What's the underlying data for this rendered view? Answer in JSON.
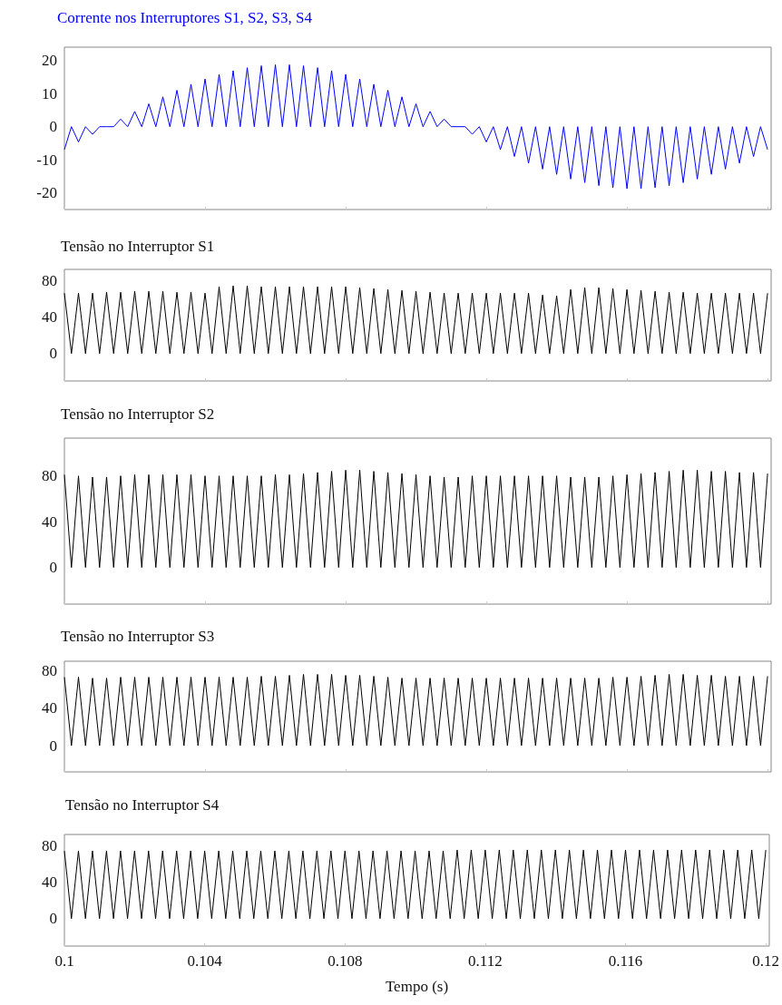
{
  "chart_data": [
    {
      "type": "line",
      "title": "Corrente nos Interruptores S1, S2, S3, S4",
      "xlim": [
        0.1,
        0.1201
      ],
      "xticks": [
        0.1,
        0.104,
        0.108,
        0.112,
        0.116,
        0.12
      ],
      "ylim": [
        -25,
        24
      ],
      "yticks": [
        -20,
        -10,
        0,
        10,
        20
      ],
      "tick_labels": "y",
      "grid": false,
      "x": [
        0.1,
        0.1002,
        0.1004,
        0.1006,
        0.1008,
        0.101,
        0.1012,
        0.1014,
        0.1016,
        0.1018,
        0.102,
        0.1022,
        0.1024,
        0.1026,
        0.1028,
        0.103,
        0.1032,
        0.1034,
        0.1036,
        0.1038,
        0.104,
        0.1042,
        0.1044,
        0.1046,
        0.1048,
        0.105,
        0.1052,
        0.1054,
        0.1056,
        0.1058,
        0.106,
        0.1062,
        0.1064,
        0.1066,
        0.1068,
        0.107,
        0.1072,
        0.1074,
        0.1076,
        0.1078,
        0.108,
        0.1082,
        0.1084,
        0.1086,
        0.1088,
        0.109,
        0.1092,
        0.1094,
        0.1096,
        0.1098,
        0.11,
        0.1102,
        0.1104,
        0.1106,
        0.1108,
        0.111,
        0.1112,
        0.1114,
        0.1116,
        0.1118,
        0.112,
        0.1122,
        0.1124,
        0.1126,
        0.1128,
        0.113,
        0.1132,
        0.1134,
        0.1136,
        0.1138,
        0.114,
        0.1142,
        0.1144,
        0.1146,
        0.1148,
        0.115,
        0.1152,
        0.1154,
        0.1156,
        0.1158,
        0.116,
        0.1162,
        0.1164,
        0.1166,
        0.1168,
        0.117,
        0.1172,
        0.1174,
        0.1176,
        0.1178,
        0.118,
        0.1182,
        0.1184,
        0.1186,
        0.1188,
        0.119,
        0.1192,
        0.1194,
        0.1196,
        0.1198,
        0.12
      ],
      "series": [
        {
          "color": "#0000ff",
          "values": [
            -6.9,
            0,
            -4.6,
            0,
            -2.3,
            0,
            0,
            0,
            2.3,
            0,
            4.6,
            0,
            6.9,
            0,
            9,
            0,
            11,
            0,
            12.8,
            0,
            14.4,
            0,
            15.8,
            0,
            16.9,
            0,
            17.8,
            0,
            18.4,
            0,
            18.7,
            0,
            18.7,
            0,
            18.4,
            0,
            17.8,
            0,
            16.9,
            0,
            15.8,
            0,
            14.4,
            0,
            12.8,
            0,
            11,
            0,
            9,
            0,
            6.9,
            0,
            4.6,
            0,
            2.3,
            0,
            0,
            0,
            -2.3,
            0,
            -4.6,
            0,
            -6.9,
            0,
            -9,
            0,
            -11,
            0,
            -12.8,
            0,
            -14.4,
            0,
            -15.8,
            0,
            -16.9,
            0,
            -17.8,
            0,
            -18.4,
            0,
            -18.7,
            0,
            -18.7,
            0,
            -18.4,
            0,
            -17.8,
            0,
            -16.9,
            0,
            -15.8,
            0,
            -14.4,
            0,
            -12.8,
            0,
            -11,
            0,
            -9,
            0,
            -6.9
          ]
        }
      ]
    },
    {
      "type": "line",
      "title": "Tensão no Interruptor S1",
      "xlim": [
        0.1,
        0.1201
      ],
      "xticks": [
        0.1,
        0.104,
        0.108,
        0.112,
        0.116,
        0.12
      ],
      "ylim": [
        -30,
        92
      ],
      "yticks": [
        0,
        40,
        80
      ],
      "tick_labels": "y",
      "grid": false,
      "x": [
        0.1,
        0.1002,
        0.1004,
        0.1006,
        0.1008,
        0.101,
        0.1012,
        0.1014,
        0.1016,
        0.1018,
        0.102,
        0.1022,
        0.1024,
        0.1026,
        0.1028,
        0.103,
        0.1032,
        0.1034,
        0.1036,
        0.1038,
        0.104,
        0.1042,
        0.1044,
        0.1046,
        0.1048,
        0.105,
        0.1052,
        0.1054,
        0.1056,
        0.1058,
        0.106,
        0.1062,
        0.1064,
        0.1066,
        0.1068,
        0.107,
        0.1072,
        0.1074,
        0.1076,
        0.1078,
        0.108,
        0.1082,
        0.1084,
        0.1086,
        0.1088,
        0.109,
        0.1092,
        0.1094,
        0.1096,
        0.1098,
        0.11,
        0.1102,
        0.1104,
        0.1106,
        0.1108,
        0.111,
        0.1112,
        0.1114,
        0.1116,
        0.1118,
        0.112,
        0.1122,
        0.1124,
        0.1126,
        0.1128,
        0.113,
        0.1132,
        0.1134,
        0.1136,
        0.1138,
        0.114,
        0.1142,
        0.1144,
        0.1146,
        0.1148,
        0.115,
        0.1152,
        0.1154,
        0.1156,
        0.1158,
        0.116,
        0.1162,
        0.1164,
        0.1166,
        0.1168,
        0.117,
        0.1172,
        0.1174,
        0.1176,
        0.1178,
        0.118,
        0.1182,
        0.1184,
        0.1186,
        0.1188,
        0.119,
        0.1192,
        0.1194,
        0.1196,
        0.1198,
        0.12
      ],
      "series": [
        {
          "color": "#000000",
          "values": [
            66,
            0,
            66,
            0,
            66,
            0,
            67,
            0,
            67,
            0,
            68,
            0,
            68,
            0,
            68,
            0,
            67,
            0,
            67,
            0,
            66,
            0,
            73,
            0,
            74,
            0,
            74,
            0,
            73,
            0,
            73,
            0,
            73,
            0,
            73,
            0,
            73,
            0,
            73,
            0,
            73,
            0,
            72,
            0,
            71,
            0,
            70,
            0,
            69,
            0,
            68,
            0,
            67,
            0,
            66,
            0,
            66,
            0,
            66,
            0,
            66,
            0,
            66,
            0,
            66,
            0,
            66,
            0,
            64,
            0,
            63,
            0,
            70,
            0,
            72,
            0,
            72,
            0,
            71,
            0,
            70,
            0,
            69,
            0,
            68,
            0,
            67,
            0,
            67,
            0,
            66,
            0,
            66,
            0,
            66,
            0,
            66,
            0,
            66,
            0,
            66
          ]
        }
      ]
    },
    {
      "type": "line",
      "title": "Tensão no Interruptor S2",
      "xlim": [
        0.1,
        0.1201
      ],
      "xticks": [
        0.1,
        0.104,
        0.108,
        0.112,
        0.116,
        0.12
      ],
      "ylim": [
        -32,
        113
      ],
      "yticks": [
        0,
        40,
        80
      ],
      "tick_labels": "y",
      "grid": false,
      "x": [
        0.1,
        0.1002,
        0.1004,
        0.1006,
        0.1008,
        0.101,
        0.1012,
        0.1014,
        0.1016,
        0.1018,
        0.102,
        0.1022,
        0.1024,
        0.1026,
        0.1028,
        0.103,
        0.1032,
        0.1034,
        0.1036,
        0.1038,
        0.104,
        0.1042,
        0.1044,
        0.1046,
        0.1048,
        0.105,
        0.1052,
        0.1054,
        0.1056,
        0.1058,
        0.106,
        0.1062,
        0.1064,
        0.1066,
        0.1068,
        0.107,
        0.1072,
        0.1074,
        0.1076,
        0.1078,
        0.108,
        0.1082,
        0.1084,
        0.1086,
        0.1088,
        0.109,
        0.1092,
        0.1094,
        0.1096,
        0.1098,
        0.11,
        0.1102,
        0.1104,
        0.1106,
        0.1108,
        0.111,
        0.1112,
        0.1114,
        0.1116,
        0.1118,
        0.112,
        0.1122,
        0.1124,
        0.1126,
        0.1128,
        0.113,
        0.1132,
        0.1134,
        0.1136,
        0.1138,
        0.114,
        0.1142,
        0.1144,
        0.1146,
        0.1148,
        0.115,
        0.1152,
        0.1154,
        0.1156,
        0.1158,
        0.116,
        0.1162,
        0.1164,
        0.1166,
        0.1168,
        0.117,
        0.1172,
        0.1174,
        0.1176,
        0.1178,
        0.118,
        0.1182,
        0.1184,
        0.1186,
        0.1188,
        0.119,
        0.1192,
        0.1194,
        0.1196,
        0.1198,
        0.12
      ],
      "series": [
        {
          "color": "#000000",
          "values": [
            81,
            0,
            80,
            0,
            79,
            0,
            79,
            0,
            80,
            0,
            81,
            0,
            81,
            0,
            81,
            0,
            81,
            0,
            81,
            0,
            80,
            0,
            80,
            0,
            80,
            0,
            80,
            0,
            80,
            0,
            81,
            0,
            81,
            0,
            82,
            0,
            83,
            0,
            84,
            0,
            85,
            0,
            85,
            0,
            84,
            0,
            83,
            0,
            82,
            0,
            81,
            0,
            80,
            0,
            79,
            0,
            79,
            0,
            80,
            0,
            80,
            0,
            80,
            0,
            80,
            0,
            80,
            0,
            80,
            0,
            80,
            0,
            79,
            0,
            79,
            0,
            79,
            0,
            80,
            0,
            81,
            0,
            82,
            0,
            83,
            0,
            84,
            0,
            85,
            0,
            85,
            0,
            84,
            0,
            84,
            0,
            83,
            0,
            83,
            0,
            82
          ]
        }
      ]
    },
    {
      "type": "line",
      "title": "Tensão no Interruptor S3",
      "xlim": [
        0.1,
        0.1201
      ],
      "xticks": [
        0.1,
        0.104,
        0.108,
        0.112,
        0.116,
        0.12
      ],
      "ylim": [
        -28,
        90
      ],
      "yticks": [
        0,
        40,
        80
      ],
      "tick_labels": "y",
      "grid": false,
      "x": [
        0.1,
        0.1002,
        0.1004,
        0.1006,
        0.1008,
        0.101,
        0.1012,
        0.1014,
        0.1016,
        0.1018,
        0.102,
        0.1022,
        0.1024,
        0.1026,
        0.1028,
        0.103,
        0.1032,
        0.1034,
        0.1036,
        0.1038,
        0.104,
        0.1042,
        0.1044,
        0.1046,
        0.1048,
        0.105,
        0.1052,
        0.1054,
        0.1056,
        0.1058,
        0.106,
        0.1062,
        0.1064,
        0.1066,
        0.1068,
        0.107,
        0.1072,
        0.1074,
        0.1076,
        0.1078,
        0.108,
        0.1082,
        0.1084,
        0.1086,
        0.1088,
        0.109,
        0.1092,
        0.1094,
        0.1096,
        0.1098,
        0.11,
        0.1102,
        0.1104,
        0.1106,
        0.1108,
        0.111,
        0.1112,
        0.1114,
        0.1116,
        0.1118,
        0.112,
        0.1122,
        0.1124,
        0.1126,
        0.1128,
        0.113,
        0.1132,
        0.1134,
        0.1136,
        0.1138,
        0.114,
        0.1142,
        0.1144,
        0.1146,
        0.1148,
        0.115,
        0.1152,
        0.1154,
        0.1156,
        0.1158,
        0.116,
        0.1162,
        0.1164,
        0.1166,
        0.1168,
        0.117,
        0.1172,
        0.1174,
        0.1176,
        0.1178,
        0.118,
        0.1182,
        0.1184,
        0.1186,
        0.1188,
        0.119,
        0.1192,
        0.1194,
        0.1196,
        0.1198,
        0.12
      ],
      "series": [
        {
          "color": "#000000",
          "values": [
            73,
            0,
            73,
            0,
            72,
            0,
            72,
            0,
            73,
            0,
            73,
            0,
            73,
            0,
            73,
            0,
            73,
            0,
            73,
            0,
            73,
            0,
            73,
            0,
            73,
            0,
            73,
            0,
            74,
            0,
            74,
            0,
            75,
            0,
            76,
            0,
            76,
            0,
            76,
            0,
            75,
            0,
            75,
            0,
            74,
            0,
            73,
            0,
            72,
            0,
            72,
            0,
            72,
            0,
            72,
            0,
            72,
            0,
            72,
            0,
            72,
            0,
            72,
            0,
            72,
            0,
            72,
            0,
            72,
            0,
            72,
            0,
            72,
            0,
            72,
            0,
            72,
            0,
            73,
            0,
            73,
            0,
            74,
            0,
            75,
            0,
            76,
            0,
            76,
            0,
            75,
            0,
            75,
            0,
            74,
            0,
            74,
            0,
            74,
            0,
            74
          ]
        }
      ]
    },
    {
      "type": "line",
      "title": "Tensão no Interruptor S4",
      "xlabel": "Tempo (s)",
      "xlim": [
        0.1,
        0.1201
      ],
      "xticks": [
        0.1,
        0.104,
        0.108,
        0.112,
        0.116,
        0.12
      ],
      "ylim": [
        -30,
        92
      ],
      "yticks": [
        0,
        40,
        80
      ],
      "grid": false,
      "x": [
        0.1,
        0.1002,
        0.1004,
        0.1006,
        0.1008,
        0.101,
        0.1012,
        0.1014,
        0.1016,
        0.1018,
        0.102,
        0.1022,
        0.1024,
        0.1026,
        0.1028,
        0.103,
        0.1032,
        0.1034,
        0.1036,
        0.1038,
        0.104,
        0.1042,
        0.1044,
        0.1046,
        0.1048,
        0.105,
        0.1052,
        0.1054,
        0.1056,
        0.1058,
        0.106,
        0.1062,
        0.1064,
        0.1066,
        0.1068,
        0.107,
        0.1072,
        0.1074,
        0.1076,
        0.1078,
        0.108,
        0.1082,
        0.1084,
        0.1086,
        0.1088,
        0.109,
        0.1092,
        0.1094,
        0.1096,
        0.1098,
        0.11,
        0.1102,
        0.1104,
        0.1106,
        0.1108,
        0.111,
        0.1112,
        0.1114,
        0.1116,
        0.1118,
        0.112,
        0.1122,
        0.1124,
        0.1126,
        0.1128,
        0.113,
        0.1132,
        0.1134,
        0.1136,
        0.1138,
        0.114,
        0.1142,
        0.1144,
        0.1146,
        0.1148,
        0.115,
        0.1152,
        0.1154,
        0.1156,
        0.1158,
        0.116,
        0.1162,
        0.1164,
        0.1166,
        0.1168,
        0.117,
        0.1172,
        0.1174,
        0.1176,
        0.1178,
        0.118,
        0.1182,
        0.1184,
        0.1186,
        0.1188,
        0.119,
        0.1192,
        0.1194,
        0.1196,
        0.1198,
        0.12
      ],
      "series": [
        {
          "color": "#000000",
          "values": [
            74,
            0,
            74,
            0,
            74,
            0,
            74,
            0,
            74,
            0,
            74,
            0,
            74,
            0,
            74,
            0,
            74,
            0,
            74,
            0,
            74,
            0,
            74,
            0,
            74,
            0,
            74,
            0,
            74,
            0,
            74,
            0,
            74,
            0,
            74,
            0,
            74,
            0,
            74,
            0,
            74,
            0,
            74,
            0,
            74,
            0,
            74,
            0,
            74,
            0,
            74,
            0,
            74,
            0,
            74,
            0,
            75,
            0,
            75,
            0,
            75,
            0,
            75,
            0,
            75,
            0,
            75,
            0,
            75,
            0,
            75,
            0,
            75,
            0,
            75,
            0,
            75,
            0,
            75,
            0,
            75,
            0,
            75,
            0,
            75,
            0,
            75,
            0,
            75,
            0,
            75,
            0,
            75,
            0,
            75,
            0,
            75,
            0,
            75,
            0,
            75
          ]
        }
      ]
    }
  ]
}
